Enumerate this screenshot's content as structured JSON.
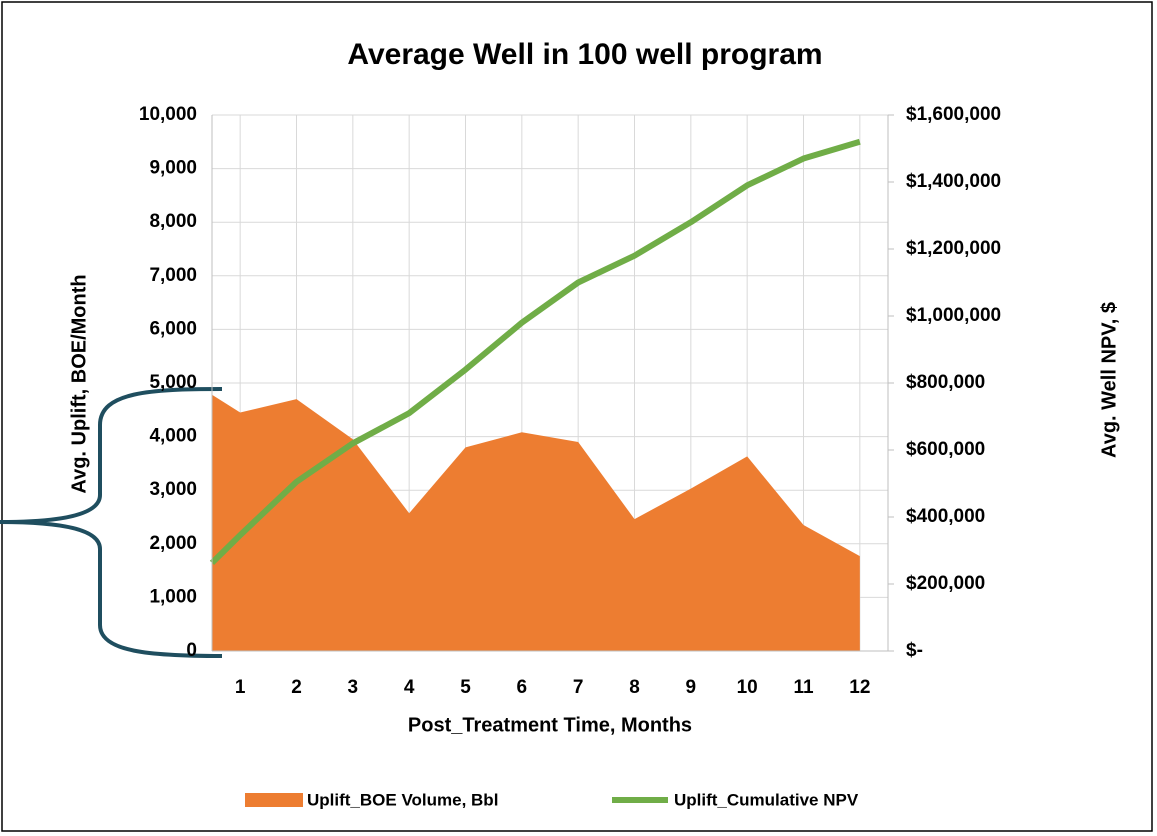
{
  "chart_data": {
    "type": "combo",
    "title": "Average Well in 100 well program",
    "x_label": "Post_Treatment Time, Months",
    "y_label": "Avg. Uplift, BOE/Month",
    "y2_label": "Avg. Well NPV, $",
    "x": [
      0.5,
      1,
      2,
      3,
      4,
      5,
      6,
      7,
      8,
      9,
      10,
      11,
      12
    ],
    "xlim": [
      0.5,
      12.5
    ],
    "xticks": [
      1,
      2,
      3,
      4,
      5,
      6,
      7,
      8,
      9,
      10,
      11,
      12
    ],
    "ylim": [
      0,
      10000
    ],
    "yticks": [
      0,
      {
        "value": 1000,
        "label": "1,000"
      },
      {
        "value": 2000,
        "label": "2,000"
      },
      {
        "value": 3000,
        "label": "3,000"
      },
      {
        "value": 4000,
        "label": "4,000"
      },
      {
        "value": 5000,
        "label": "5,000"
      },
      {
        "value": 6000,
        "label": "6,000"
      },
      {
        "value": 7000,
        "label": "7,000"
      },
      {
        "value": 8000,
        "label": "8,000"
      },
      {
        "value": 9000,
        "label": "9,000"
      },
      {
        "value": 10000,
        "label": "10,000"
      }
    ],
    "y2lim": [
      0,
      1600000
    ],
    "y2ticks": [
      {
        "value": 0,
        "label": "$-"
      },
      {
        "value": 200000,
        "label": "$200,000"
      },
      {
        "value": 400000,
        "label": "$400,000"
      },
      {
        "value": 600000,
        "label": "$600,000"
      },
      {
        "value": 800000,
        "label": "$800,000"
      },
      {
        "value": 1000000,
        "label": "$1,000,000"
      },
      {
        "value": 1200000,
        "label": "$1,200,000"
      },
      {
        "value": 1400000,
        "label": "$1,400,000"
      },
      {
        "value": 1600000,
        "label": "$1,600,000"
      }
    ],
    "grid": true,
    "legend": "bottom",
    "series": [
      {
        "name": "Uplift_BOE Volume, Bbl",
        "type": "area",
        "color": "#ed7d31",
        "values": [
          4780,
          4450,
          4700,
          3950,
          2570,
          3800,
          4080,
          3900,
          2460,
          3030,
          3630,
          2350,
          1770
        ]
      },
      {
        "name": "Uplift_Cumulative NPV",
        "type": "line",
        "axis": "y2",
        "color": "#70ad47",
        "values": [
          263000,
          346000,
          505000,
          620000,
          710000,
          840000,
          980000,
          1100000,
          1180000,
          1280000,
          1390000,
          1470000,
          1520000
        ]
      }
    ]
  }
}
